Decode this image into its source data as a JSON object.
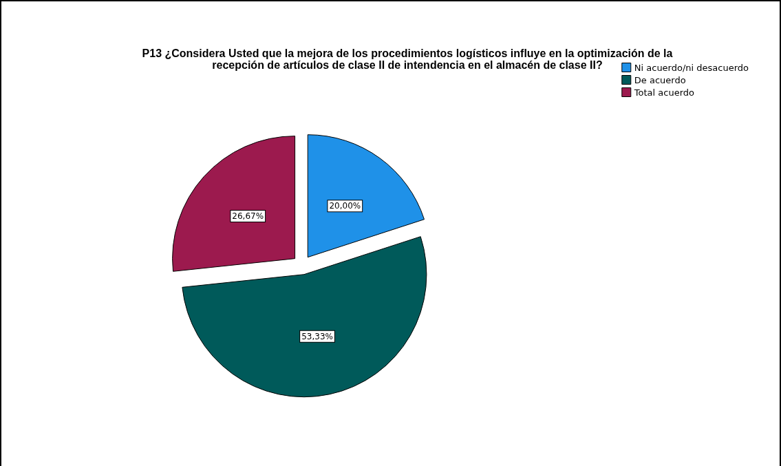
{
  "chart_data": {
    "type": "pie",
    "title": "P13 ¿Considera Usted que la mejora de los procedimientos logísticos influye en la optimización de la\nrecepción de artículos de clase II de intendencia en el almacén de clase II?",
    "categories": [
      "Ni acuerdo/ni desacuerdo",
      "De acuerdo",
      "Total acuerdo"
    ],
    "values": [
      20.0,
      53.33,
      26.67
    ],
    "colors": [
      "#1f91e8",
      "#005a5a",
      "#9c1a4e"
    ],
    "value_labels": [
      "20,00%",
      "53,33%",
      "26,67%"
    ],
    "legend": "top right"
  }
}
